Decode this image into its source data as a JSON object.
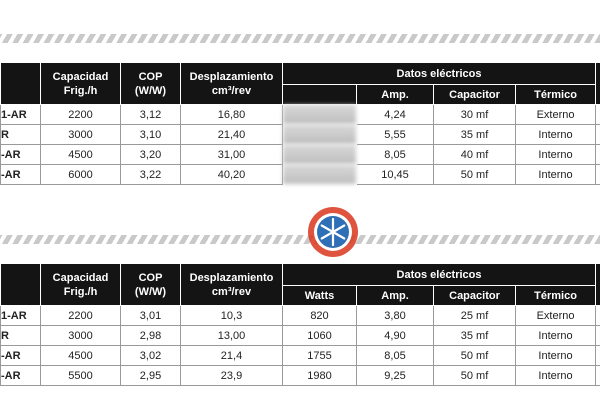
{
  "tables": [
    {
      "headers": [
        "Capacidad\nFrig./h",
        "COP\n(W/W)",
        "Desplazamiento\ncm³/rev"
      ],
      "group_header": "Datos eléctricos",
      "sub_headers": [
        "Amp.",
        "Capacitor",
        "Térmico"
      ],
      "rows": [
        [
          "1-AR",
          "2200",
          "3,12",
          "16,80",
          "4,24",
          "30 mf",
          "Externo"
        ],
        [
          "R",
          "3000",
          "3,10",
          "21,40",
          "5,55",
          "35 mf",
          "Interno"
        ],
        [
          "-AR",
          "4500",
          "3,20",
          "31,00",
          "8,05",
          "40 mf",
          "Interno"
        ],
        [
          "-AR",
          "6000",
          "3,22",
          "40,20",
          "10,45",
          "50 mf",
          "Interno"
        ]
      ]
    },
    {
      "headers": [
        "Capacidad\nFrig./h",
        "COP\n(W/W)",
        "Desplazamiento\ncm³/rev"
      ],
      "group_header": "Datos eléctricos",
      "sub_headers": [
        "Watts",
        "Amp.",
        "Capacitor",
        "Térmico"
      ],
      "rows": [
        [
          "1-AR",
          "2200",
          "3,01",
          "10,3",
          "820",
          "3,80",
          "25 mf",
          "Externo"
        ],
        [
          "R",
          "3000",
          "2,98",
          "13,00",
          "1060",
          "4,90",
          "35 mf",
          "Interno"
        ],
        [
          "-AR",
          "4500",
          "3,02",
          "21,4",
          "1755",
          "8,05",
          "50 mf",
          "Interno"
        ],
        [
          "-AR",
          "5500",
          "2,95",
          "23,9",
          "1980",
          "9,25",
          "50 mf",
          "Interno"
        ]
      ]
    }
  ]
}
